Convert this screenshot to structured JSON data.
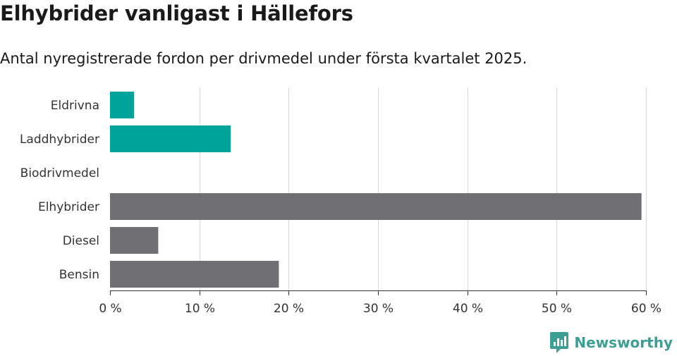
{
  "chart_data": {
    "type": "bar",
    "orientation": "horizontal",
    "title": "Elhybrider vanligast i Hällefors",
    "subtitle": "Antal nyregistrerade fordon per drivmedel under första kvartalet 2025.",
    "categories": [
      "Eldrivna",
      "Laddhybrider",
      "Biodrivmedel",
      "Elhybrider",
      "Diesel",
      "Bensin"
    ],
    "values": [
      2.7,
      13.5,
      0,
      59.5,
      5.4,
      18.9
    ],
    "bar_colors": [
      "#00a39a",
      "#00a39a",
      "#00a39a",
      "#6f6e73",
      "#6f6e73",
      "#6f6e73"
    ],
    "xlim": [
      0,
      60
    ],
    "x_ticks": [
      0,
      10,
      20,
      30,
      40,
      50,
      60
    ],
    "x_tick_labels": [
      "0 %",
      "10 %",
      "20 %",
      "30 %",
      "40 %",
      "50 %",
      "60 %"
    ],
    "grid": true,
    "grid_color": "#d9d9d9",
    "axis_color": "#333333"
  },
  "brand": {
    "name": "Newsworthy",
    "color": "#3d9e94",
    "icon": "newsworthy-logo-icon"
  }
}
